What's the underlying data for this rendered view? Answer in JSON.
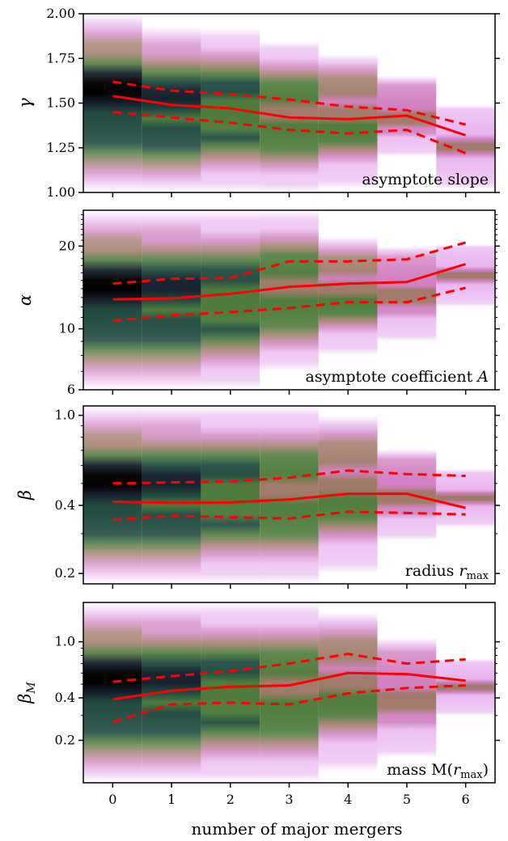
{
  "chart_data": {
    "type": "line",
    "xlabel": "number of major mergers",
    "x_ticks": [
      "0",
      "1",
      "2",
      "3",
      "4",
      "5",
      "6"
    ],
    "x": [
      0,
      1,
      2,
      3,
      4,
      5,
      6
    ],
    "panels": [
      {
        "ylabel": "γ",
        "annotation": "asymptote slope",
        "yscale": "linear",
        "ylim": [
          1.0,
          2.0
        ],
        "yticks": [
          1.0,
          1.25,
          1.5,
          1.75,
          2.0
        ],
        "ytick_labels": [
          "1.00",
          "1.25",
          "1.50",
          "1.75",
          "2.00"
        ],
        "density_ranges": [
          [
            0.78,
            2.04
          ],
          [
            0.93,
            1.93
          ],
          [
            0.95,
            1.92
          ],
          [
            0.98,
            1.85
          ],
          [
            1.02,
            1.82
          ],
          [
            1.2,
            1.68
          ],
          [
            1.02,
            1.52
          ]
        ],
        "series": [
          {
            "values": [
              1.54,
              1.49,
              1.47,
              1.42,
              1.41,
              1.43,
              1.32
            ],
            "style": "solid"
          },
          {
            "values": [
              1.62,
              1.57,
              1.55,
              1.52,
              1.48,
              1.46,
              1.38
            ],
            "style": "dashed"
          },
          {
            "values": [
              1.45,
              1.42,
              1.39,
              1.35,
              1.33,
              1.35,
              1.22
            ],
            "style": "dashed"
          }
        ]
      },
      {
        "ylabel": "α",
        "annotation": "asymptote coefficient A",
        "yscale": "log",
        "ylim": [
          6,
          27
        ],
        "yticks": [
          6,
          10,
          20
        ],
        "ytick_labels": [
          "6",
          "10",
          "20"
        ],
        "minor_yticks": [
          7,
          8,
          9,
          11,
          12,
          13,
          14,
          15,
          16,
          17,
          18,
          19,
          21,
          22,
          23,
          24,
          25,
          26
        ],
        "density_ranges": [
          [
            5.5,
            28
          ],
          [
            6,
            27
          ],
          [
            6,
            27
          ],
          [
            7,
            27
          ],
          [
            8,
            23
          ],
          [
            9,
            21
          ],
          [
            12,
            21
          ]
        ],
        "series": [
          {
            "values": [
              12.8,
              12.9,
              13.4,
              14.2,
              14.6,
              14.8,
              17.2
            ],
            "style": "solid"
          },
          {
            "values": [
              14.6,
              15.2,
              15.3,
              17.6,
              17.6,
              17.9,
              20.6
            ],
            "style": "dashed"
          },
          {
            "values": [
              10.7,
              11.2,
              11.5,
              11.9,
              12.5,
              12.5,
              14.1
            ],
            "style": "dashed"
          }
        ]
      },
      {
        "ylabel": "β",
        "annotation": "radius r_max",
        "yscale": "log",
        "ylim": [
          0.18,
          1.1
        ],
        "yticks": [
          0.2,
          0.4,
          1.0
        ],
        "ytick_labels": [
          "0.2",
          "0.4",
          "1.0"
        ],
        "minor_yticks": [
          0.3,
          0.5,
          0.6,
          0.7,
          0.8,
          0.9
        ],
        "density_ranges": [
          [
            0.17,
            1.15
          ],
          [
            0.17,
            1.15
          ],
          [
            0.17,
            1.15
          ],
          [
            0.17,
            1.15
          ],
          [
            0.2,
            1.15
          ],
          [
            0.28,
            0.75
          ],
          [
            0.32,
            0.6
          ]
        ],
        "series": [
          {
            "values": [
              0.415,
              0.41,
              0.412,
              0.425,
              0.45,
              0.45,
              0.39
            ],
            "style": "solid"
          },
          {
            "values": [
              0.5,
              0.505,
              0.51,
              0.53,
              0.57,
              0.55,
              0.54
            ],
            "style": "dashed"
          },
          {
            "values": [
              0.345,
              0.36,
              0.355,
              0.35,
              0.375,
              0.37,
              0.365
            ],
            "style": "dashed"
          }
        ]
      },
      {
        "ylabel": "β_M",
        "annotation": "mass M(r_max)",
        "yscale": "log",
        "ylim": [
          0.1,
          1.9
        ],
        "yticks": [
          0.2,
          0.4,
          1.0
        ],
        "ytick_labels": [
          "0.2",
          "0.4",
          "1.0"
        ],
        "minor_yticks": [
          0.3,
          0.5,
          0.6,
          0.7,
          0.8,
          0.9
        ],
        "density_ranges": [
          [
            0.08,
            1.9
          ],
          [
            0.08,
            1.9
          ],
          [
            0.1,
            1.9
          ],
          [
            0.1,
            1.9
          ],
          [
            0.12,
            1.9
          ],
          [
            0.15,
            1.2
          ],
          [
            0.3,
            0.8
          ]
        ],
        "series": [
          {
            "values": [
              0.39,
              0.45,
              0.48,
              0.49,
              0.6,
              0.59,
              0.53
            ],
            "style": "solid"
          },
          {
            "values": [
              0.52,
              0.57,
              0.62,
              0.7,
              0.82,
              0.7,
              0.75
            ],
            "style": "dashed"
          },
          {
            "values": [
              0.27,
              0.36,
              0.37,
              0.36,
              0.43,
              0.47,
              0.49
            ],
            "style": "dashed"
          }
        ]
      }
    ]
  },
  "colors": {
    "line": "#ff0000",
    "cmap": [
      "#ffffff",
      "#e8b3ef",
      "#d07fc0",
      "#a07a6a",
      "#4e7c3c",
      "#204a40",
      "#15202e",
      "#000000"
    ]
  }
}
